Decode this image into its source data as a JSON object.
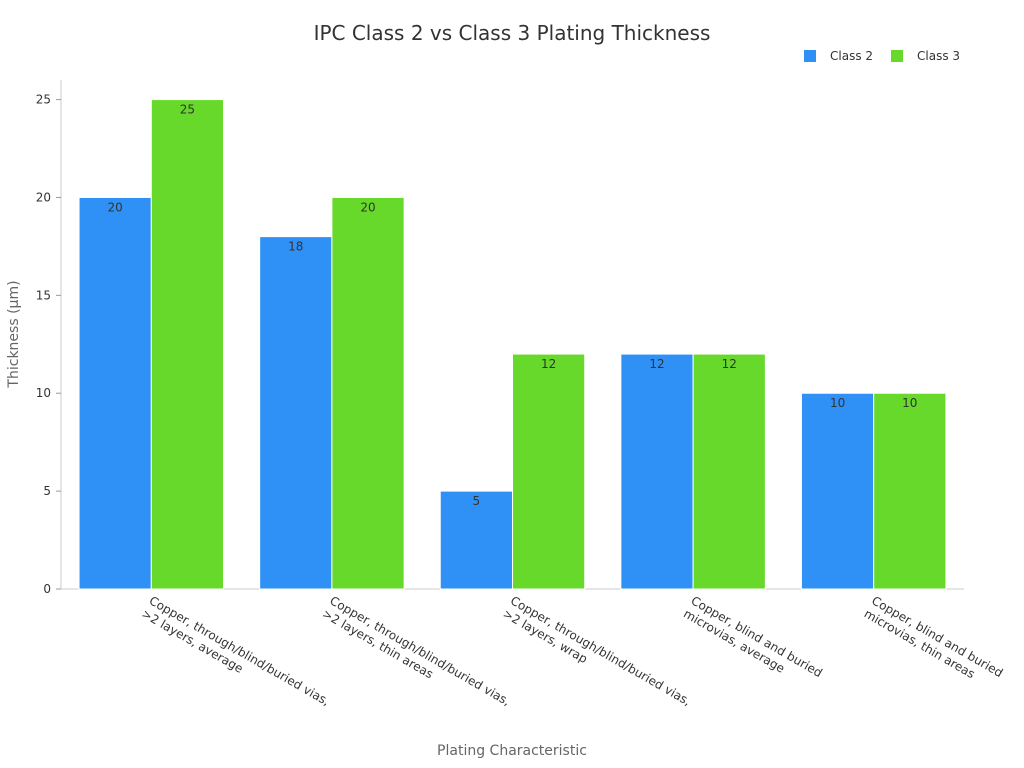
{
  "chart_data": {
    "type": "bar",
    "title": "IPC Class 2 vs Class 3 Plating Thickness",
    "xlabel": "Plating Characteristic",
    "ylabel": "Thickness (µm)",
    "ylim": [
      0,
      26
    ],
    "yticks": [
      0,
      5,
      10,
      15,
      20,
      25
    ],
    "grid": false,
    "legend_position": "top-right",
    "categories": [
      [
        "Copper, through/blind/buried vias,",
        ">2 layers, average"
      ],
      [
        "Copper, through/blind/buried vias,",
        ">2 layers, thin areas"
      ],
      [
        "Copper, through/blind/buried vias,",
        ">2 layers, wrap"
      ],
      [
        "Copper, blind and buried",
        "microvias, average"
      ],
      [
        "Copper, blind and buried",
        "microvias, thin areas"
      ]
    ],
    "series": [
      {
        "name": "Class 2",
        "color": "#2f91f5",
        "values": [
          20,
          18,
          5,
          12,
          10
        ]
      },
      {
        "name": "Class 3",
        "color": "#66d92a",
        "values": [
          25,
          20,
          12,
          12,
          10
        ]
      }
    ]
  }
}
